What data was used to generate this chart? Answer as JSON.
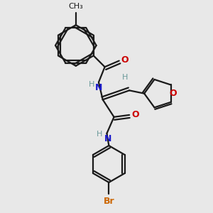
{
  "bg_color": "#e8e8e8",
  "bond_color": "#1a1a1a",
  "O_color": "#cc0000",
  "N_color": "#1a1acc",
  "Br_color": "#cc6600",
  "H_color": "#6a9a9a",
  "line_width": 1.6,
  "font_size": 9,
  "fig_size": [
    3.0,
    3.0
  ],
  "dpi": 100,
  "xlim": [
    0,
    10
  ],
  "ylim": [
    0,
    10
  ]
}
